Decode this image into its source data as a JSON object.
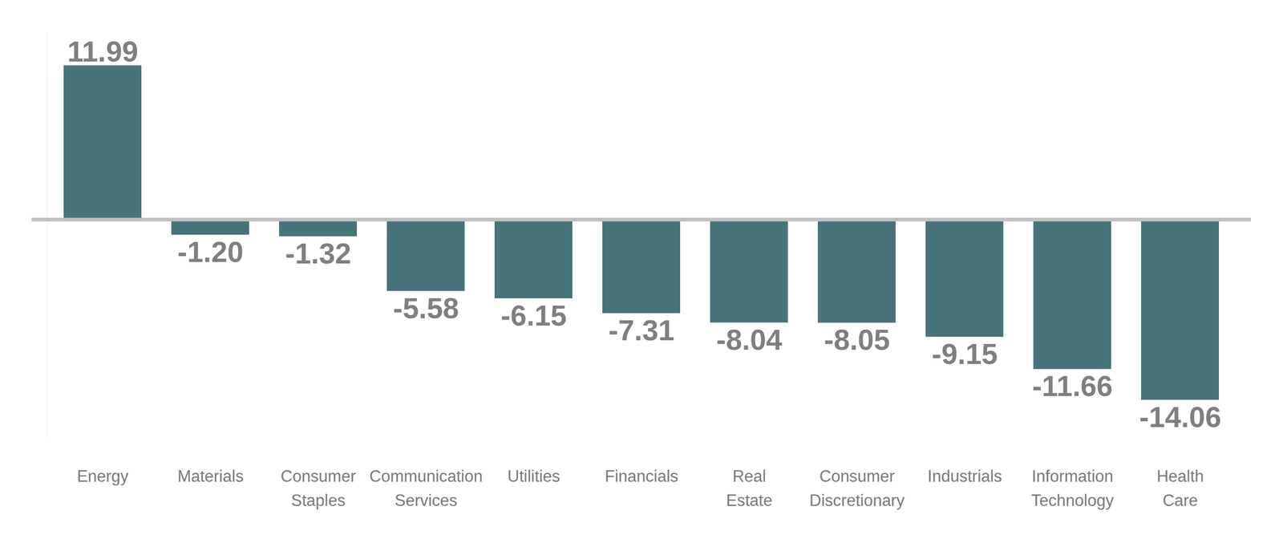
{
  "chart_data": {
    "type": "bar",
    "categories": [
      "Energy",
      "Materials",
      "Consumer Staples",
      "Communication Services",
      "Utilities",
      "Financials",
      "Real Estate",
      "Consumer Discretionary",
      "Industrials",
      "Information Technology",
      "Health Care"
    ],
    "values": [
      11.99,
      -1.2,
      -1.32,
      -5.58,
      -6.15,
      -7.31,
      -8.04,
      -8.05,
      -9.15,
      -11.66,
      -14.06
    ],
    "value_labels": [
      "11.99",
      "-1.20",
      "-1.32",
      "-5.58",
      "-6.15",
      "-7.31",
      "-8.04",
      "-8.05",
      "-9.15",
      "-11.66",
      "-14.06"
    ],
    "color": "#47737a",
    "ylim": [
      -17,
      14.5
    ],
    "yticks": [
      0
    ],
    "grid": false,
    "data_labels": true,
    "tick_labels": "x"
  }
}
